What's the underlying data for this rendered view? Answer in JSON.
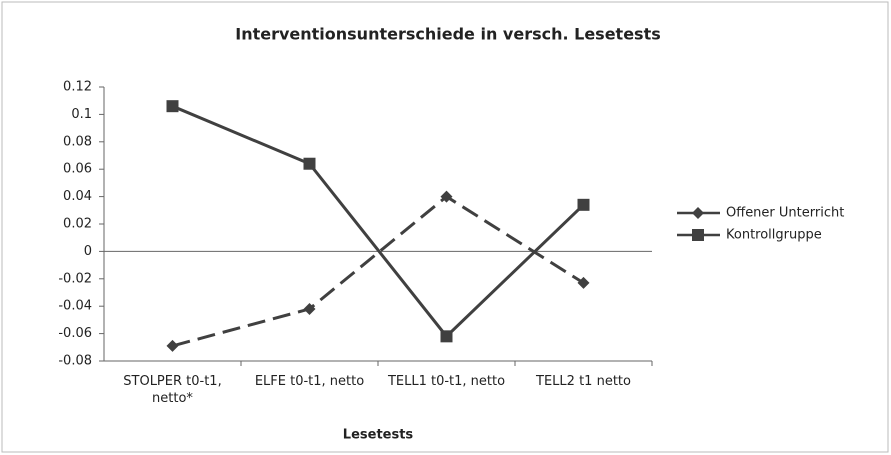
{
  "chart_data": {
    "type": "line",
    "title": "Interventionsunterschiede in versch. Lesetests",
    "x_label": "Lesetests",
    "categories": [
      "STOLPER t0-t1, netto*",
      "ELFE t0-t1, netto",
      "TELL1 t0-t1, netto",
      "TELL2 t1 netto"
    ],
    "series": [
      {
        "name": "Offener Unterricht",
        "color": "#404040",
        "dashed": true,
        "marker": "diamond",
        "values": [
          -0.069,
          -0.042,
          0.04,
          -0.023
        ]
      },
      {
        "name": "Kontrollgruppe",
        "color": "#404040",
        "dashed": false,
        "marker": "square",
        "values": [
          0.106,
          0.064,
          -0.062,
          0.034
        ]
      }
    ],
    "ylim": [
      -0.08,
      0.12
    ],
    "yticks": [
      -0.08,
      -0.06,
      -0.04,
      -0.02,
      0,
      0.02,
      0.04,
      0.06,
      0.08,
      0.1,
      0.12
    ],
    "legend": "right"
  }
}
